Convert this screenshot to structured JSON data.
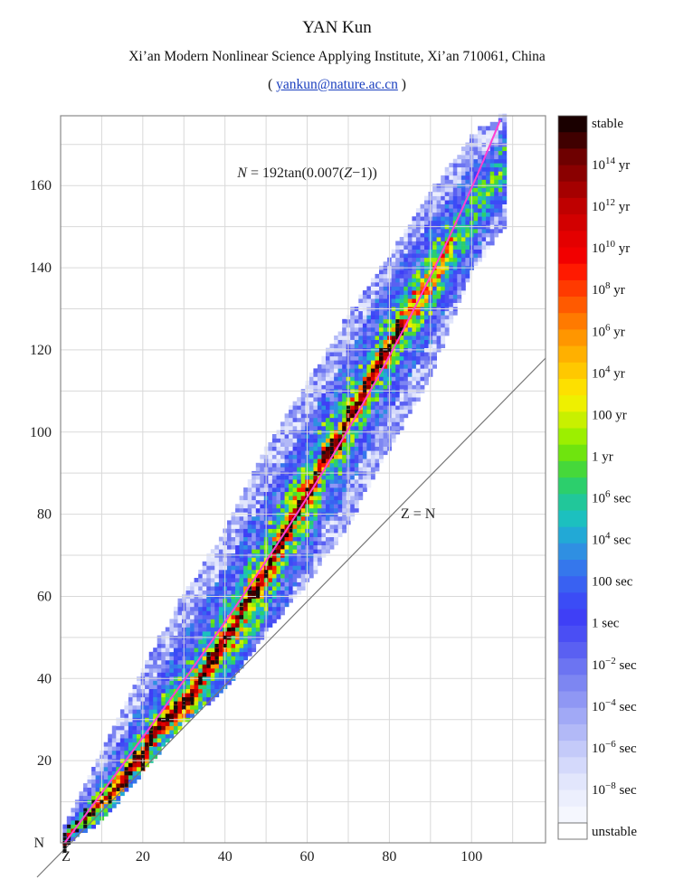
{
  "header": {
    "author": "YAN Kun",
    "affiliation": "Xi’an Modern Nonlinear Science Applying Institute, Xi’an 710061, China",
    "email_open": "( ",
    "email": "yankun@nature.ac.cn",
    "email_close": " )"
  },
  "colors": {
    "fit_line": "#ff3fd2",
    "diagonal": "#777777",
    "grid": "#d9d9d9",
    "link": "#1a3fbf"
  },
  "chart_data": {
    "type": "heatmap",
    "title": "",
    "xlabel": "Z",
    "ylabel": "N",
    "xlim": [
      0,
      118
    ],
    "ylim": [
      0,
      177
    ],
    "grid": true,
    "x_ticks": [
      20,
      40,
      60,
      80,
      100
    ],
    "y_ticks": [
      20,
      40,
      60,
      80,
      100,
      120,
      140,
      160
    ],
    "annotations": [
      {
        "text_N": "N",
        "text_eq": " = 192tan(0.007(",
        "text_Z": "Z",
        "text_end": "−1))",
        "x": 60,
        "y": 162
      },
      {
        "text": "Z = N",
        "x": 87,
        "y": 79
      }
    ],
    "fit_curve": {
      "label": "N = 192tan(0.007(Z−1))",
      "a": 192,
      "b": 0.007,
      "c": 1
    },
    "diagonal_line": {
      "label": "Z = N"
    },
    "stable_line": [
      [
        1,
        0
      ],
      [
        2,
        2
      ],
      [
        4,
        5
      ],
      [
        6,
        6
      ],
      [
        8,
        8
      ],
      [
        10,
        10
      ],
      [
        12,
        12
      ],
      [
        14,
        14
      ],
      [
        16,
        16
      ],
      [
        18,
        20
      ],
      [
        20,
        20
      ],
      [
        22,
        26
      ],
      [
        24,
        28
      ],
      [
        26,
        30
      ],
      [
        28,
        32
      ],
      [
        30,
        34
      ],
      [
        32,
        36
      ],
      [
        34,
        40
      ],
      [
        36,
        44
      ],
      [
        38,
        46
      ],
      [
        40,
        50
      ],
      [
        42,
        52
      ],
      [
        44,
        56
      ],
      [
        46,
        60
      ],
      [
        48,
        62
      ],
      [
        50,
        66
      ],
      [
        52,
        70
      ],
      [
        54,
        74
      ],
      [
        56,
        78
      ],
      [
        58,
        82
      ],
      [
        60,
        84
      ],
      [
        62,
        88
      ],
      [
        64,
        94
      ],
      [
        66,
        96
      ],
      [
        68,
        98
      ],
      [
        70,
        104
      ],
      [
        72,
        106
      ],
      [
        74,
        110
      ],
      [
        76,
        114
      ],
      [
        78,
        118
      ],
      [
        80,
        120
      ],
      [
        82,
        125
      ],
      [
        83,
        126
      ]
    ],
    "band": {
      "upper": [
        [
          0,
          2
        ],
        [
          10,
          22
        ],
        [
          20,
          42
        ],
        [
          30,
          60
        ],
        [
          40,
          76
        ],
        [
          50,
          96
        ],
        [
          60,
          112
        ],
        [
          70,
          128
        ],
        [
          80,
          142
        ],
        [
          90,
          158
        ],
        [
          100,
          172
        ],
        [
          108,
          177
        ]
      ],
      "lower": [
        [
          0,
          0
        ],
        [
          10,
          6
        ],
        [
          20,
          18
        ],
        [
          30,
          30
        ],
        [
          40,
          38
        ],
        [
          50,
          52
        ],
        [
          60,
          64
        ],
        [
          70,
          78
        ],
        [
          80,
          96
        ],
        [
          90,
          114
        ],
        [
          100,
          140
        ],
        [
          108,
          150
        ]
      ],
      "core_half_width_frac": [
        0.12,
        0.3,
        0.55
      ]
    },
    "colorbar": {
      "labels": [
        {
          "base": "stable",
          "exp": ""
        },
        {
          "base": "10",
          "exp": "14",
          "unit": " yr"
        },
        {
          "base": "10",
          "exp": "12",
          "unit": " yr"
        },
        {
          "base": "10",
          "exp": "10",
          "unit": " yr"
        },
        {
          "base": "10",
          "exp": "8",
          "unit": " yr"
        },
        {
          "base": "10",
          "exp": "6",
          "unit": " yr"
        },
        {
          "base": "10",
          "exp": "4",
          "unit": " yr"
        },
        {
          "base": "100 yr",
          "exp": ""
        },
        {
          "base": "1 yr",
          "exp": ""
        },
        {
          "base": "10",
          "exp": "6",
          "unit": " sec"
        },
        {
          "base": "10",
          "exp": "4",
          "unit": " sec"
        },
        {
          "base": "100 sec",
          "exp": ""
        },
        {
          "base": "1 sec",
          "exp": ""
        },
        {
          "base": "10",
          "exp": "−2",
          "unit": " sec"
        },
        {
          "base": "10",
          "exp": "−4",
          "unit": " sec"
        },
        {
          "base": "10",
          "exp": "−6",
          "unit": " sec"
        },
        {
          "base": "10",
          "exp": "−8",
          "unit": " sec"
        },
        {
          "base": "unstable",
          "exp": ""
        }
      ],
      "colors": [
        "#1a0000",
        "#400000",
        "#6e0000",
        "#8a0000",
        "#a50000",
        "#bf0000",
        "#d20000",
        "#e40000",
        "#f20000",
        "#ff1a00",
        "#ff3a00",
        "#ff5a00",
        "#ff7a00",
        "#ff9600",
        "#ffb000",
        "#ffc800",
        "#fde000",
        "#eef000",
        "#c8f000",
        "#9cef00",
        "#6fe40e",
        "#46d83a",
        "#2ccf6c",
        "#21c79a",
        "#1cc0bf",
        "#22a9d6",
        "#2f8fe2",
        "#3577ec",
        "#3961f2",
        "#3b4cf6",
        "#3f3ff6",
        "#4a4ef4",
        "#5a60f2",
        "#6c74f2",
        "#7d86f2",
        "#8f97f4",
        "#a1a9f6",
        "#b2b9f7",
        "#c4caf9",
        "#d4d9fb",
        "#e2e6fc",
        "#eceffd",
        "#f5f7fe",
        "#ffffff"
      ]
    }
  }
}
